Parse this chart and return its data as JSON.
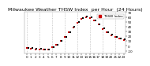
{
  "title": "Milwaukee Weather THSW Index  per Hour  (24 Hours)",
  "x_values": [
    0,
    1,
    2,
    3,
    4,
    5,
    6,
    7,
    8,
    9,
    10,
    11,
    12,
    13,
    14,
    15,
    16,
    17,
    18,
    19,
    20,
    21,
    22,
    23
  ],
  "y_values": [
    -5,
    -6,
    -7,
    -7,
    -8,
    -8,
    -3,
    2,
    10,
    18,
    28,
    38,
    48,
    56,
    60,
    58,
    52,
    44,
    35,
    28,
    22,
    18,
    15,
    12
  ],
  "y_values2": [
    -4,
    -5,
    -6,
    -6,
    -7,
    -7,
    -2,
    3,
    11,
    19,
    29,
    39,
    49,
    57,
    61,
    59,
    53,
    45,
    36,
    29,
    23,
    19,
    16,
    13
  ],
  "dot_color": "#cc0000",
  "dot_color2": "#000000",
  "bg_color": "#ffffff",
  "grid_color": "#aaaaaa",
  "ylim": [
    -15,
    70
  ],
  "yticks": [
    -10,
    0,
    10,
    20,
    30,
    40,
    50,
    60,
    70
  ],
  "ytick_labels": [
    "-10",
    "0",
    "10",
    "20",
    "30",
    "40",
    "50",
    "60",
    "70"
  ],
  "vgrid_positions": [
    0,
    3,
    6,
    9,
    12,
    15,
    18,
    21
  ],
  "legend_label": "THSW Index",
  "legend_color": "#cc0000",
  "title_fontsize": 4.5,
  "tick_fontsize": 3.0,
  "legend_fontsize": 3.0
}
